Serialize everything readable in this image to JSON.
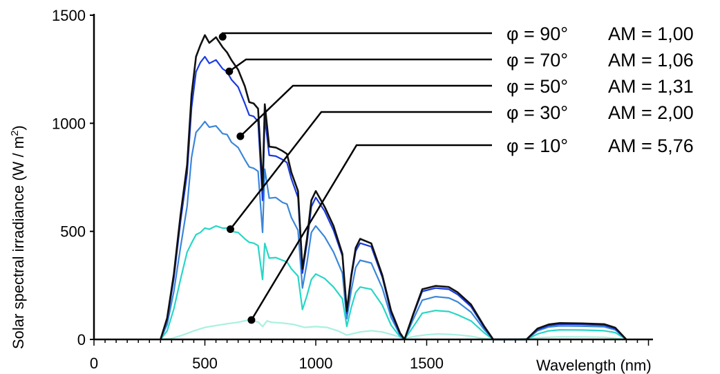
{
  "chart_data": {
    "type": "line",
    "title": "",
    "xlabel": "Wavelength (nm)",
    "ylabel": "Solar spectral irradiance (W / m²)",
    "xlim": [
      0,
      2500
    ],
    "ylim": [
      0,
      1500
    ],
    "x_ticks": [
      0,
      500,
      1000,
      1500
    ],
    "y_ticks": [
      0,
      500,
      1000,
      1500
    ],
    "grid": false,
    "series": [
      {
        "name": "φ = 90°   AM = 1,00",
        "color": "#111111",
        "x": [
          300,
          330,
          360,
          390,
          420,
          440,
          460,
          480,
          500,
          520,
          550,
          580,
          600,
          620,
          650,
          680,
          700,
          720,
          740,
          760,
          770,
          790,
          820,
          850,
          870,
          890,
          920,
          940,
          960,
          980,
          1000,
          1040,
          1080,
          1120,
          1140,
          1160,
          1180,
          1200,
          1250,
          1300,
          1340,
          1380,
          1400,
          1440,
          1480,
          1540,
          1600,
          1640,
          1700,
          1760,
          1800,
          1840,
          1880,
          1950,
          2000,
          2050,
          2100,
          2200,
          2300,
          2350,
          2400
        ],
        "y": [
          0,
          100,
          300,
          580,
          800,
          1140,
          1300,
          1370,
          1400,
          1380,
          1390,
          1360,
          1320,
          1300,
          1240,
          1180,
          1090,
          1100,
          1060,
          700,
          1080,
          900,
          880,
          880,
          850,
          780,
          680,
          330,
          460,
          650,
          680,
          620,
          520,
          400,
          130,
          300,
          420,
          470,
          440,
          300,
          130,
          30,
          0,
          120,
          230,
          250,
          240,
          220,
          160,
          60,
          0,
          0,
          0,
          0,
          50,
          70,
          75,
          75,
          70,
          55,
          0
        ]
      },
      {
        "name": "φ = 70°   AM = 1,06",
        "color": "#1a3ae0",
        "x": [
          300,
          330,
          360,
          390,
          420,
          440,
          460,
          480,
          500,
          520,
          550,
          580,
          600,
          620,
          650,
          680,
          700,
          720,
          740,
          760,
          770,
          790,
          820,
          850,
          870,
          890,
          920,
          940,
          960,
          980,
          1000,
          1040,
          1080,
          1120,
          1140,
          1160,
          1180,
          1200,
          1250,
          1300,
          1340,
          1380,
          1400,
          1440,
          1480,
          1540,
          1600,
          1640,
          1700,
          1760,
          1800,
          1840,
          1880,
          1950,
          2000,
          2050,
          2100,
          2200,
          2300,
          2350,
          2400
        ],
        "y": [
          0,
          90,
          280,
          550,
          760,
          1080,
          1230,
          1290,
          1300,
          1285,
          1285,
          1260,
          1230,
          1210,
          1160,
          1100,
          1030,
          1040,
          1000,
          650,
          1020,
          860,
          840,
          840,
          810,
          750,
          650,
          310,
          440,
          620,
          650,
          600,
          500,
          390,
          120,
          290,
          405,
          450,
          425,
          290,
          120,
          25,
          0,
          115,
          220,
          240,
          230,
          210,
          150,
          55,
          0,
          0,
          0,
          0,
          45,
          65,
          70,
          70,
          65,
          50,
          0
        ]
      },
      {
        "name": "φ = 50°   AM = 1,31",
        "color": "#3a86d8",
        "x": [
          300,
          330,
          360,
          390,
          420,
          440,
          460,
          480,
          500,
          520,
          550,
          580,
          600,
          620,
          650,
          680,
          700,
          720,
          740,
          760,
          770,
          790,
          820,
          850,
          870,
          890,
          920,
          940,
          960,
          980,
          1000,
          1040,
          1080,
          1120,
          1140,
          1160,
          1180,
          1200,
          1250,
          1300,
          1340,
          1380,
          1400,
          1440,
          1480,
          1540,
          1600,
          1640,
          1700,
          1760,
          1800,
          1840,
          1880,
          1950,
          2000,
          2050,
          2100,
          2200,
          2300,
          2350,
          2400
        ],
        "y": [
          0,
          70,
          220,
          430,
          610,
          850,
          950,
          990,
          1000,
          990,
          980,
          960,
          940,
          920,
          880,
          840,
          790,
          800,
          770,
          500,
          780,
          660,
          650,
          640,
          620,
          570,
          500,
          240,
          350,
          500,
          520,
          480,
          400,
          310,
          95,
          230,
          330,
          370,
          350,
          240,
          100,
          20,
          0,
          95,
          180,
          200,
          190,
          175,
          125,
          45,
          0,
          0,
          0,
          0,
          40,
          58,
          62,
          62,
          58,
          45,
          0
        ]
      },
      {
        "name": "φ = 30°   AM = 2,00",
        "color": "#27d6c6",
        "x": [
          300,
          330,
          360,
          390,
          420,
          440,
          460,
          480,
          500,
          520,
          550,
          580,
          600,
          620,
          650,
          680,
          700,
          720,
          740,
          760,
          770,
          790,
          820,
          850,
          870,
          890,
          920,
          940,
          960,
          980,
          1000,
          1040,
          1080,
          1120,
          1140,
          1160,
          1180,
          1200,
          1250,
          1300,
          1340,
          1380,
          1400,
          1440,
          1480,
          1540,
          1600,
          1640,
          1700,
          1760,
          1800,
          1840,
          1880,
          1950,
          2000,
          2050,
          2100,
          2200,
          2300,
          2350,
          2400
        ],
        "y": [
          0,
          40,
          140,
          280,
          400,
          450,
          480,
          500,
          510,
          515,
          520,
          520,
          510,
          505,
          490,
          470,
          445,
          450,
          430,
          280,
          440,
          380,
          375,
          370,
          355,
          330,
          290,
          140,
          200,
          280,
          300,
          285,
          240,
          190,
          60,
          150,
          215,
          245,
          230,
          160,
          65,
          12,
          0,
          60,
          120,
          135,
          128,
          115,
          85,
          30,
          0,
          0,
          0,
          0,
          25,
          40,
          44,
          44,
          40,
          32,
          0
        ]
      },
      {
        "name": "φ = 10°   AM = 5,76",
        "color": "#a8f0e0",
        "x": [
          300,
          350,
          400,
          450,
          500,
          550,
          600,
          650,
          700,
          720,
          740,
          760,
          780,
          800,
          850,
          900,
          950,
          1000,
          1050,
          1100,
          1140,
          1200,
          1250,
          1300,
          1350,
          1400,
          1450,
          1500,
          1550,
          1600,
          1650,
          1700,
          1750,
          1800,
          1900,
          2000,
          2100,
          2200,
          2300,
          2400
        ],
        "y": [
          0,
          5,
          20,
          40,
          55,
          65,
          72,
          80,
          90,
          85,
          80,
          60,
          85,
          80,
          75,
          70,
          55,
          60,
          55,
          40,
          20,
          35,
          40,
          35,
          20,
          5,
          15,
          22,
          25,
          24,
          20,
          15,
          5,
          0,
          0,
          8,
          12,
          12,
          10,
          0
        ]
      }
    ],
    "legend": [
      {
        "phi": "φ = 90°",
        "am": "AM = 1,00"
      },
      {
        "phi": "φ = 70°",
        "am": "AM = 1,06"
      },
      {
        "phi": "φ = 50°",
        "am": "AM = 1,31"
      },
      {
        "phi": "φ = 30°",
        "am": "AM = 2,00"
      },
      {
        "phi": "φ = 10°",
        "am": "AM = 5,76"
      }
    ],
    "legend_placement": "top-right",
    "leader_targets": [
      {
        "x": 580,
        "y": 1400
      },
      {
        "x": 610,
        "y": 1240
      },
      {
        "x": 660,
        "y": 940
      },
      {
        "x": 615,
        "y": 510
      },
      {
        "x": 710,
        "y": 90
      }
    ]
  }
}
